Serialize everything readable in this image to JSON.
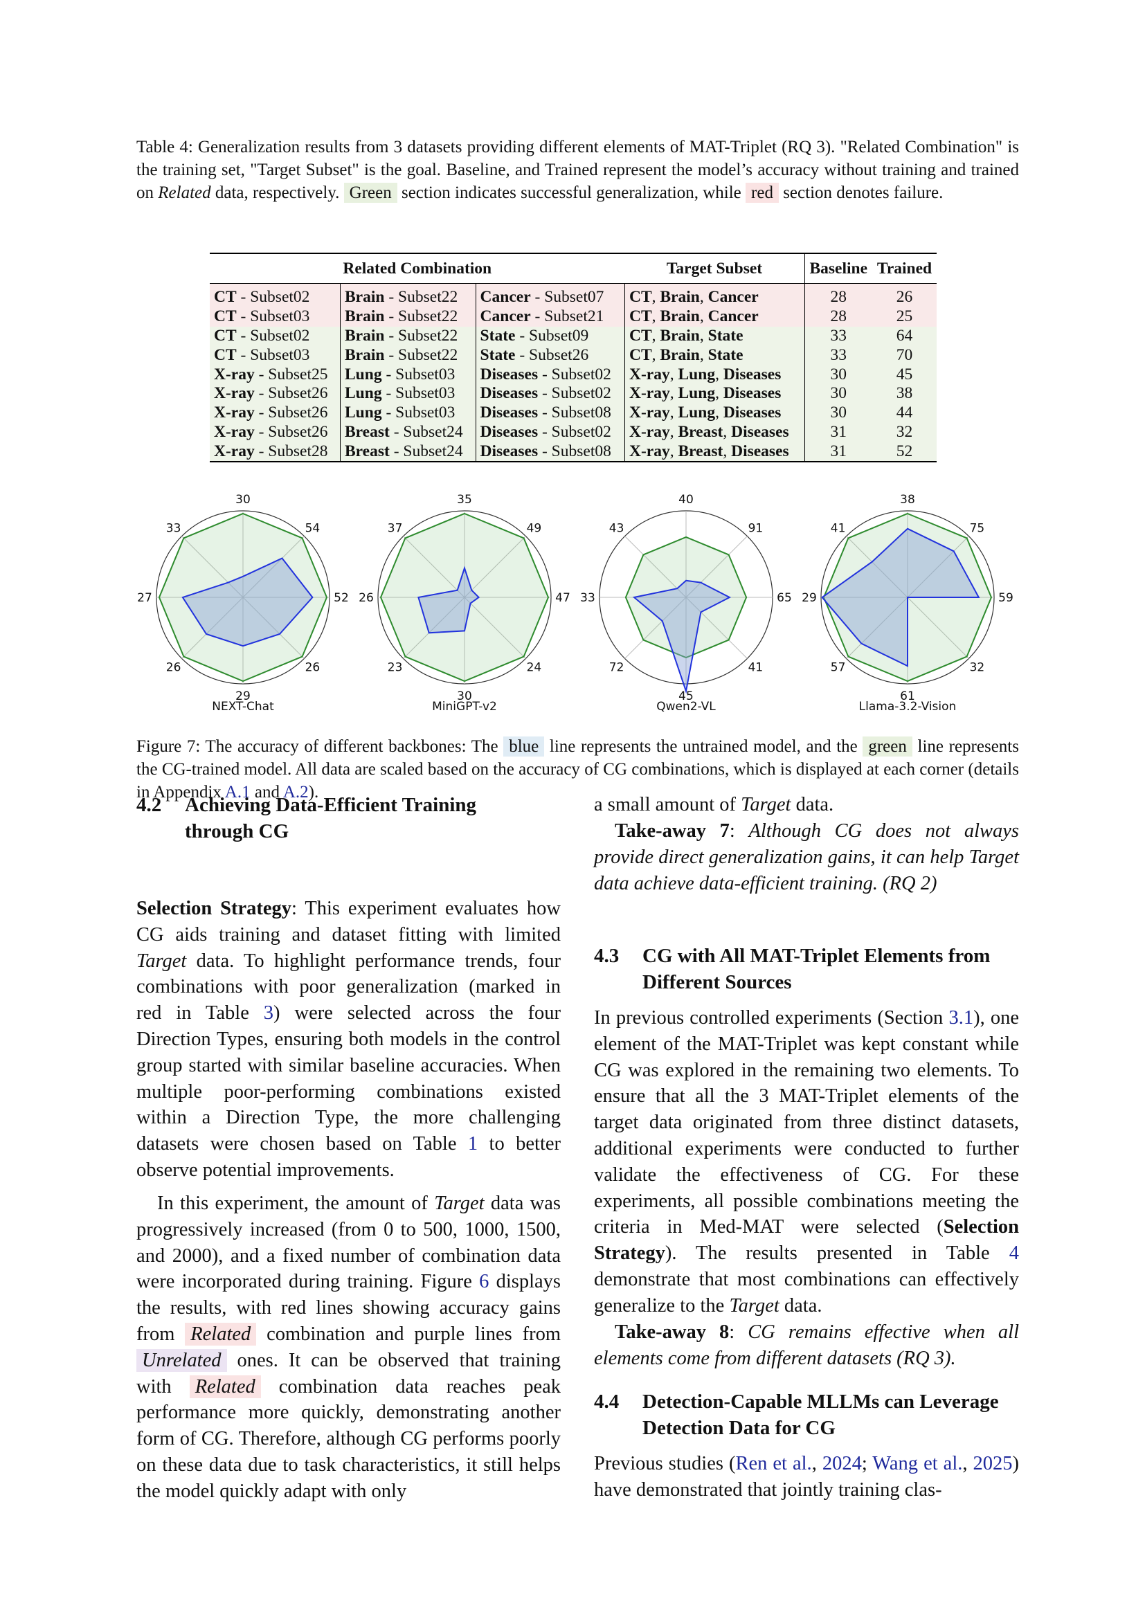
{
  "table_caption": {
    "prefix": "Table 4: Generalization results from 3 datasets providing different elements of MAT-Triplet (RQ 3).  \"Related Combination\" is the training set, \"Target Subset\" is the goal. Baseline, and Trained represent the model’s accuracy without training and trained on ",
    "italic": "Related",
    "mid": " data, respectively. ",
    "green_word": "Green",
    "mid2": " section indicates successful generalization, while ",
    "red_word": "red",
    "suffix": " section denotes failure."
  },
  "table": {
    "headers": {
      "related": "Related Combination",
      "target": "Target Subset",
      "baseline": "Baseline",
      "trained": "Trained"
    },
    "rows": [
      {
        "status": "fail",
        "c1b": "CT",
        "c1": " - Subset02",
        "c2b": "Brain",
        "c2": " - Subset22",
        "c3b": "Cancer",
        "c3": " - Subset07",
        "t1": "CT",
        "t2": "Brain",
        "t3": "Cancer",
        "baseline": "28",
        "trained": "26"
      },
      {
        "status": "fail",
        "c1b": "CT",
        "c1": " - Subset03",
        "c2b": "Brain",
        "c2": " - Subset22",
        "c3b": "Cancer",
        "c3": " - Subset21",
        "t1": "CT",
        "t2": "Brain",
        "t3": "Cancer",
        "baseline": "28",
        "trained": "25"
      },
      {
        "status": "success",
        "c1b": "CT",
        "c1": " - Subset02",
        "c2b": "Brain",
        "c2": " - Subset22",
        "c3b": "State",
        "c3": " - Subset09",
        "t1": "CT",
        "t2": "Brain",
        "t3": "State",
        "baseline": "33",
        "trained": "64"
      },
      {
        "status": "success",
        "c1b": "CT",
        "c1": " - Subset03",
        "c2b": "Brain",
        "c2": " - Subset22",
        "c3b": "State",
        "c3": " - Subset26",
        "t1": "CT",
        "t2": "Brain",
        "t3": "State",
        "baseline": "33",
        "trained": "70"
      },
      {
        "status": "success",
        "c1b": "X-ray",
        "c1": " - Subset25",
        "c2b": "Lung",
        "c2": " - Subset03",
        "c3b": "Diseases",
        "c3": " - Subset02",
        "t1": "X-ray",
        "t2": "Lung",
        "t3": "Diseases",
        "baseline": "30",
        "trained": "45"
      },
      {
        "status": "success",
        "c1b": "X-ray",
        "c1": " - Subset26",
        "c2b": "Lung",
        "c2": " - Subset03",
        "c3b": "Diseases",
        "c3": " - Subset02",
        "t1": "X-ray",
        "t2": "Lung",
        "t3": "Diseases",
        "baseline": "30",
        "trained": "38"
      },
      {
        "status": "success",
        "c1b": "X-ray",
        "c1": " - Subset26",
        "c2b": "Lung",
        "c2": " - Subset03",
        "c3b": "Diseases",
        "c3": " - Subset08",
        "t1": "X-ray",
        "t2": "Lung",
        "t3": "Diseases",
        "baseline": "30",
        "trained": "44"
      },
      {
        "status": "success",
        "c1b": "X-ray",
        "c1": " - Subset26",
        "c2b": "Breast",
        "c2": " - Subset24",
        "c3b": "Diseases",
        "c3": " - Subset02",
        "t1": "X-ray",
        "t2": "Breast",
        "t3": "Diseases",
        "baseline": "31",
        "trained": "32"
      },
      {
        "status": "success",
        "c1b": "X-ray",
        "c1": " - Subset28",
        "c2b": "Breast",
        "c2": " - Subset24",
        "c3b": "Diseases",
        "c3": " - Subset08",
        "t1": "X-ray",
        "t2": "Breast",
        "t3": "Diseases",
        "baseline": "31",
        "trained": "52"
      }
    ]
  },
  "chart_data": [
    {
      "type": "radar",
      "name": "NEXT-Chat",
      "axis_labels": [
        "30",
        "54",
        "52",
        "26",
        "29",
        "26",
        "27",
        "33"
      ],
      "series": [
        {
          "color": "#2233dd",
          "values": [
            0.25,
            0.66,
            0.83,
            0.62,
            0.58,
            0.62,
            0.72,
            0.25
          ]
        },
        {
          "color": "#2e8b2e",
          "values": [
            1,
            1,
            1,
            1,
            1,
            1,
            1,
            1
          ]
        }
      ]
    },
    {
      "type": "radar",
      "name": "MiniGPT-v2",
      "axis_labels": [
        "35",
        "49",
        "47",
        "24",
        "30",
        "23",
        "26",
        "37"
      ],
      "series": [
        {
          "color": "#2233dd",
          "values": [
            0.35,
            0.12,
            0.17,
            0.1,
            0.4,
            0.6,
            0.55,
            0.12
          ]
        },
        {
          "color": "#2e8b2e",
          "values": [
            1,
            1,
            1,
            1,
            1,
            1,
            1,
            1
          ]
        }
      ]
    },
    {
      "type": "radar",
      "name": "Qwen2-VL",
      "axis_labels": [
        "40",
        "91",
        "65",
        "41",
        "45",
        "72",
        "33",
        "43"
      ],
      "series": [
        {
          "color": "#2233dd",
          "values": [
            0.2,
            0.25,
            0.52,
            0.25,
            1.12,
            0.4,
            0.62,
            0.15
          ]
        },
        {
          "color": "#2e8b2e",
          "values": [
            0.72,
            0.72,
            0.72,
            0.72,
            0.72,
            0.72,
            0.72,
            0.72
          ]
        }
      ]
    },
    {
      "type": "radar",
      "name": "Llama-3.2-Vision",
      "axis_labels": [
        "38",
        "75",
        "59",
        "32",
        "61",
        "57",
        "29",
        "41"
      ],
      "series": [
        {
          "color": "#2233dd",
          "values": [
            0.82,
            0.78,
            0.85,
            0.0,
            0.82,
            0.78,
            1.02,
            0.6
          ]
        },
        {
          "color": "#2e8b2e",
          "values": [
            1,
            1,
            1,
            1,
            1,
            1,
            1,
            1
          ]
        }
      ]
    }
  ],
  "figure_caption": {
    "prefix": "Figure 7: The accuracy of different backbones: The ",
    "blue_word": "blue",
    "mid": " line represents the untrained model, and the ",
    "green_word": "green",
    "mid2": " line represents the CG-trained model. All data are scaled based on the accuracy of CG combinations, which is displayed at each corner (details in Appendix ",
    "ref1": "A.1",
    "and": " and ",
    "ref2": "A.2",
    "end": ")."
  },
  "sec42": {
    "number": "4.2",
    "title_line1": "Achieving Data-Efficient Training",
    "title_line2": "through CG"
  },
  "p1": {
    "bold": "Selection Strategy",
    "t1": ": This experiment evaluates how CG aids training and dataset fitting with limited ",
    "i1": "Target",
    "t2": " data. To highlight performance trends, four combinations with poor generalization (marked in red in Table ",
    "ref1": "3",
    "t3": ") were selected across the four Direction Types, ensuring both models in the control group started with similar baseline accuracies. When multiple poor-performing combinations existed within a Direction Type, the more challenging datasets were chosen based on Table ",
    "ref2": "1",
    "t4": " to better observe potential improvements."
  },
  "p2": {
    "t1": "In this experiment, the amount of ",
    "i1": "Target",
    "t2": " data was progressively increased (from 0 to 500, 1000, 1500, and 2000), and a fixed number of combination data were incorporated during training. Figure ",
    "ref1": "6",
    "t3": " displays the results, with red lines showing accuracy gains from ",
    "h1": "Related",
    "t4": " combination and purple lines from ",
    "h2": "Unrelated",
    "t5": " ones. It can be observed that training with ",
    "h3": "Related",
    "t6": " combination data reaches peak performance more quickly, demonstrating another form of CG. Therefore, although CG performs poorly on these data due to task characteristics, it still helps the model quickly adapt with only"
  },
  "p3": {
    "t1": "a small amount of ",
    "i1": "Target",
    "t2": " data."
  },
  "tk7": {
    "bold": "Take-away 7",
    "colon": ": ",
    "italic": "Although CG does not always provide direct generalization gains, it can help Target data achieve data-efficient training. (RQ 2)"
  },
  "sec43": {
    "number": "4.3",
    "title_line1": "CG with All MAT-Triplet Elements from",
    "title_line2": "Different Sources"
  },
  "p4": {
    "t1": "In previous controlled experiments (Section ",
    "ref1": "3.1",
    "t2": "), one element of the MAT-Triplet was kept constant while CG was explored in the remaining two elements.  To ensure that all the 3 MAT-Triplet elements of the target data originated from three distinct datasets, additional experiments were conducted to further validate the effectiveness of CG. For these experiments, all possible combinations meeting the criteria in Med-MAT were selected (",
    "b1": "Selection Strategy",
    "t3": "). The results presented in Table ",
    "ref2": "4",
    "t4": " demonstrate that most combinations can effectively generalize to the ",
    "i1": "Target",
    "t5": " data."
  },
  "tk8": {
    "bold": "Take-away 8",
    "colon": ": ",
    "italic": "CG remains effective when all elements come from different datasets (RQ 3)."
  },
  "sec44": {
    "number": "4.4",
    "title_line1": "Detection-Capable MLLMs can Leverage",
    "title_line2": "Detection Data for CG"
  },
  "p5": {
    "t1": "Previous studies (",
    "ref1": "Ren et al.",
    "c1": ", ",
    "ref2": "2024",
    "sc": "; ",
    "ref3": "Wang et al.",
    "c2": ", ",
    "ref4": "2025",
    "t2": ") have demonstrated that jointly training clas-"
  }
}
